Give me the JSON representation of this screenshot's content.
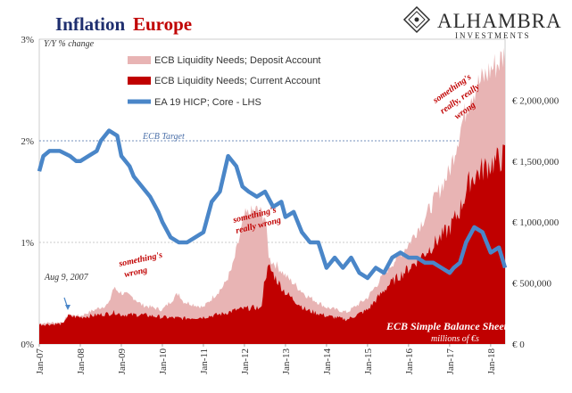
{
  "header": {
    "title_part1": "Inflation",
    "title_part2": "Europe",
    "brand_name": "ALHAMBRA",
    "brand_sub": "INVESTMENTS"
  },
  "chart_data": {
    "type": "area",
    "left_axis": {
      "label": "Y/Y % change",
      "ticks": [
        "0%",
        "1%",
        "2%",
        "3%"
      ],
      "range": [
        0,
        3
      ]
    },
    "right_axis": {
      "ticks": [
        "€ 0",
        "€ 500,000",
        "€ 1,000,000",
        "€ 1,500,000",
        "€ 2,000,000"
      ],
      "range": [
        0,
        2500000
      ]
    },
    "x_ticks": [
      "Jan-07",
      "Jan-08",
      "Jan-09",
      "Jan-10",
      "Jan-11",
      "Jan-12",
      "Jan-13",
      "Jan-14",
      "Jan-15",
      "Jan-16",
      "Jan-17",
      "Jan-18"
    ],
    "x_range": [
      2007.0,
      2018.35
    ],
    "ecb_target": {
      "value": 2,
      "label": "ECB Target"
    },
    "legend": {
      "deposit": "ECB Liquidity Needs; Deposit Account",
      "current": "ECB Liquidity Needs; Current Account",
      "hicp": "EA 19 HICP; Core - LHS"
    },
    "colors": {
      "deposit": "#e8b4b4",
      "current": "#c00000",
      "hicp": "#4a86c8"
    },
    "annotations": {
      "aug": "Aug 9, 2007",
      "wrong1": "something's",
      "wrong2": "wrong",
      "really1": "something's",
      "really2": "really wrong",
      "rr1": "something's",
      "rr2": "really, really",
      "rr3": "wrong",
      "balance": "ECB Simple Balance Sheet",
      "units": "millions of €s"
    },
    "series": [
      {
        "name": "ECB Liquidity Needs; Current Account",
        "axis": "right",
        "x": [
          2007.0,
          2007.6,
          2007.62,
          2007.7,
          2008.0,
          2008.7,
          2008.85,
          2009.0,
          2009.5,
          2010.0,
          2010.5,
          2011.0,
          2011.5,
          2011.8,
          2012.0,
          2012.3,
          2012.4,
          2012.5,
          2012.6,
          2012.8,
          2013.0,
          2013.5,
          2014.0,
          2014.5,
          2015.0,
          2015.5,
          2016.0,
          2016.5,
          2017.0,
          2017.25,
          2017.5,
          2017.75,
          2018.0,
          2018.25,
          2018.35
        ],
        "values": [
          160000,
          165000,
          200000,
          230000,
          220000,
          250000,
          260000,
          240000,
          240000,
          220000,
          210000,
          220000,
          250000,
          280000,
          290000,
          300000,
          280000,
          550000,
          630000,
          520000,
          420000,
          280000,
          230000,
          200000,
          280000,
          480000,
          620000,
          780000,
          950000,
          1100000,
          1350000,
          1420000,
          1480000,
          1520000,
          1550000
        ]
      },
      {
        "name": "ECB Liquidity Needs; Deposit Account",
        "axis": "right",
        "x": [
          2007.0,
          2007.6,
          2007.7,
          2008.0,
          2008.7,
          2008.8,
          2009.0,
          2009.3,
          2009.5,
          2010.0,
          2010.4,
          2010.5,
          2011.0,
          2011.5,
          2011.7,
          2011.9,
          2012.0,
          2012.3,
          2012.5,
          2012.6,
          2012.8,
          2013.0,
          2013.5,
          2014.0,
          2014.5,
          2015.0,
          2015.5,
          2016.0,
          2016.5,
          2017.0,
          2017.25,
          2017.5,
          2017.75,
          2018.0,
          2018.25,
          2018.35
        ],
        "values": [
          170000,
          180000,
          240000,
          230000,
          330000,
          460000,
          420000,
          380000,
          320000,
          280000,
          420000,
          350000,
          300000,
          480000,
          620000,
          900000,
          1050000,
          1100000,
          1050000,
          700000,
          640000,
          560000,
          400000,
          300000,
          260000,
          380000,
          620000,
          820000,
          1100000,
          1420000,
          1750000,
          2050000,
          2150000,
          2250000,
          2330000,
          2380000
        ]
      },
      {
        "name": "EA 19 HICP; Core - LHS",
        "axis": "left",
        "x": [
          2007.0,
          2007.1,
          2007.25,
          2007.5,
          2007.75,
          2007.9,
          2008.0,
          2008.2,
          2008.4,
          2008.5,
          2008.7,
          2008.9,
          2009.0,
          2009.2,
          2009.3,
          2009.5,
          2009.7,
          2009.9,
          2010.0,
          2010.2,
          2010.4,
          2010.6,
          2010.8,
          2011.0,
          2011.2,
          2011.4,
          2011.6,
          2011.8,
          2011.95,
          2012.1,
          2012.3,
          2012.5,
          2012.7,
          2012.9,
          2013.0,
          2013.2,
          2013.4,
          2013.6,
          2013.8,
          2014.0,
          2014.2,
          2014.4,
          2014.6,
          2014.8,
          2015.0,
          2015.2,
          2015.4,
          2015.6,
          2015.8,
          2016.0,
          2016.2,
          2016.4,
          2016.6,
          2016.8,
          2017.0,
          2017.1,
          2017.25,
          2017.4,
          2017.6,
          2017.8,
          2018.0,
          2018.2,
          2018.35
        ],
        "values": [
          1.7,
          1.85,
          1.9,
          1.9,
          1.85,
          1.8,
          1.8,
          1.85,
          1.9,
          2.0,
          2.1,
          2.05,
          1.85,
          1.75,
          1.65,
          1.55,
          1.45,
          1.3,
          1.2,
          1.05,
          1.0,
          1.0,
          1.05,
          1.1,
          1.4,
          1.5,
          1.85,
          1.75,
          1.55,
          1.5,
          1.45,
          1.5,
          1.35,
          1.4,
          1.25,
          1.3,
          1.1,
          1.0,
          1.0,
          0.75,
          0.85,
          0.75,
          0.85,
          0.7,
          0.65,
          0.75,
          0.7,
          0.85,
          0.9,
          0.85,
          0.85,
          0.8,
          0.8,
          0.75,
          0.7,
          0.75,
          0.8,
          1.0,
          1.15,
          1.1,
          0.9,
          0.95,
          0.75
        ]
      }
    ]
  }
}
